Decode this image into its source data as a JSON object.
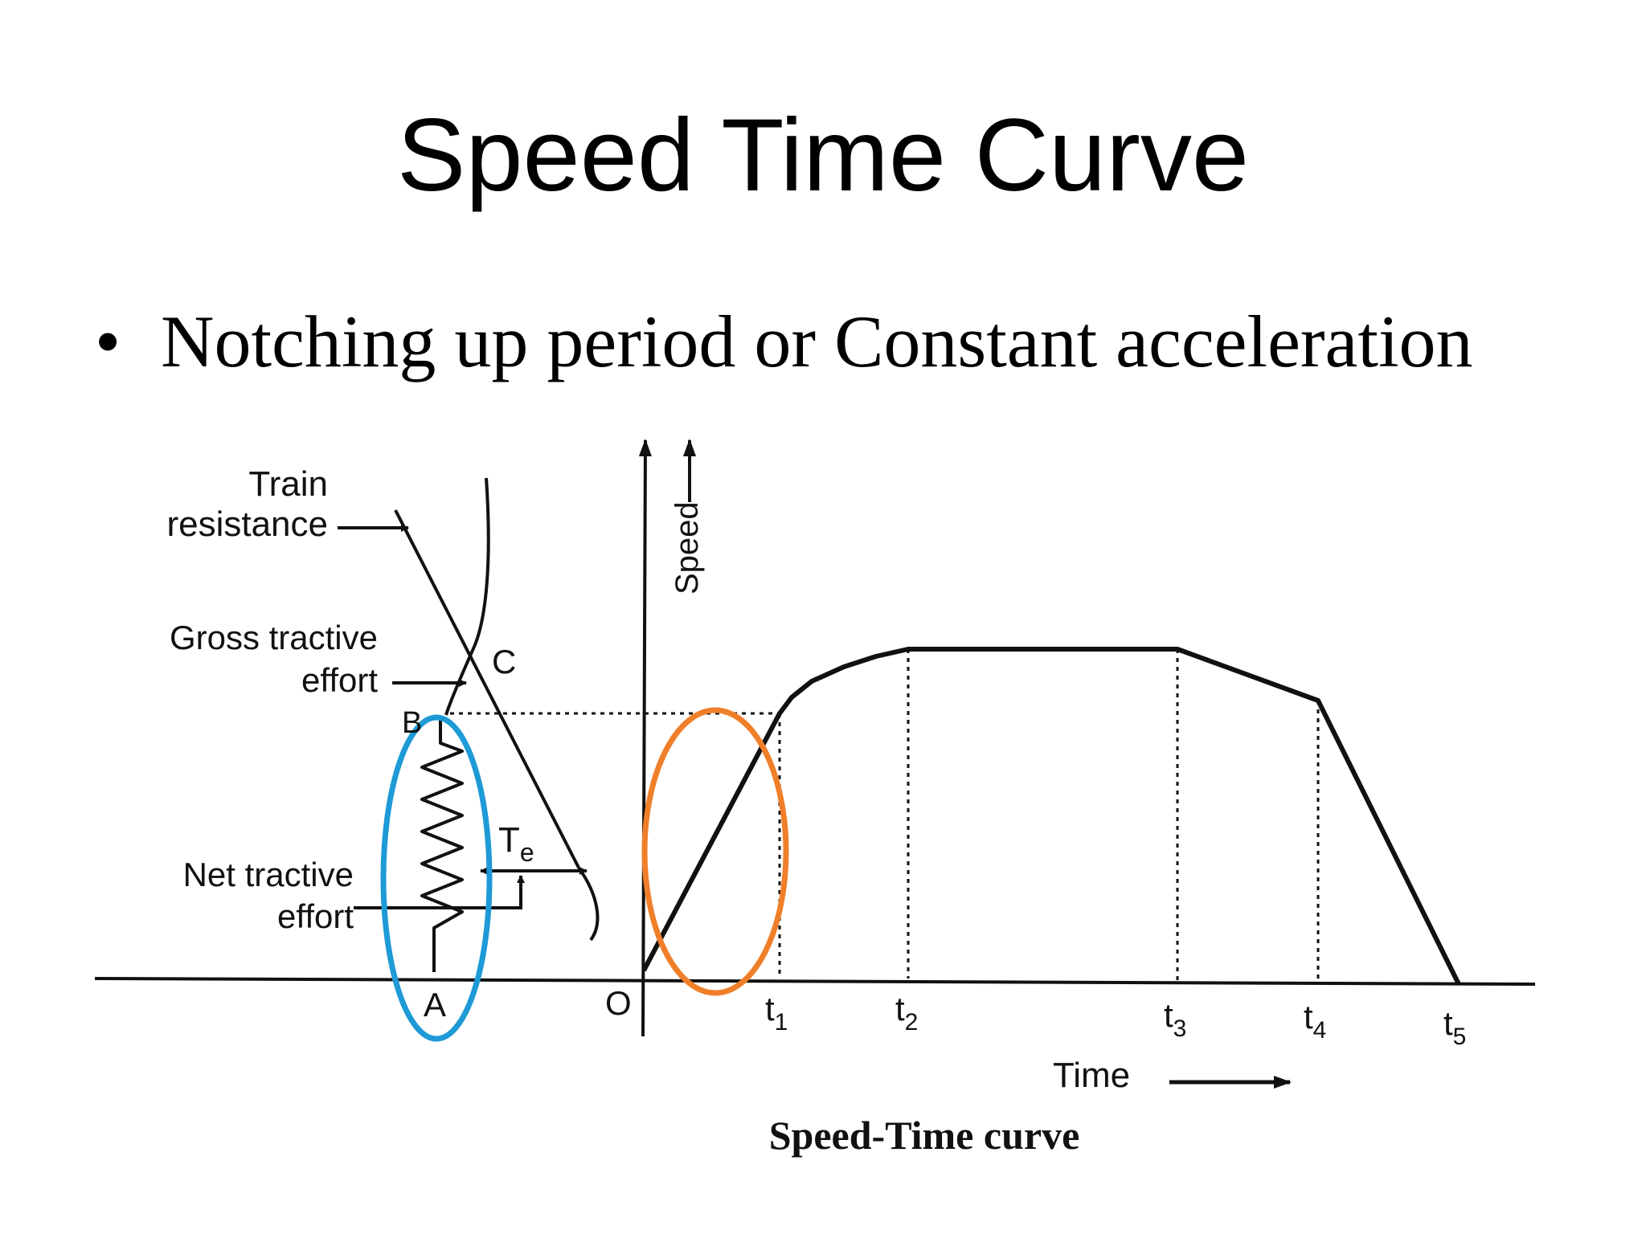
{
  "slide": {
    "title": "Speed Time Curve",
    "bullet": "Notching up period or Constant acceleration"
  },
  "diagram": {
    "caption": "Speed-Time curve",
    "labels": {
      "train_resistance": [
        "Train",
        "resistance"
      ],
      "gross_tractive_effort": [
        "Gross tractive",
        "effort"
      ],
      "net_tractive_effort": [
        "Net tractive",
        "effort"
      ],
      "point_c": "C",
      "point_b": "B",
      "point_a": "A",
      "origin": "O",
      "te_main": "T",
      "te_sub": "e",
      "speed_axis": "Speed",
      "time_axis": "Time"
    },
    "time_marks": [
      {
        "main": "t",
        "sub": "1"
      },
      {
        "main": "t",
        "sub": "2"
      },
      {
        "main": "t",
        "sub": "3"
      },
      {
        "main": "t",
        "sub": "4"
      },
      {
        "main": "t",
        "sub": "5"
      }
    ],
    "highlight_colors": {
      "blue_ellipse": "#1e9ad6",
      "orange_ellipse": "#f07f2a"
    }
  }
}
